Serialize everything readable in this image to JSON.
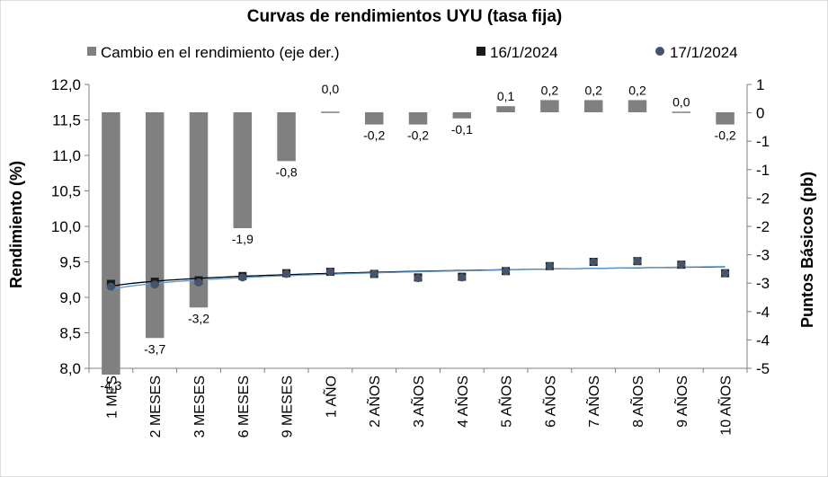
{
  "chart_data": {
    "type": "bar",
    "title": "Curvas de rendimientos UYU (tasa fija)",
    "categories": [
      "1 MES",
      "2 MESES",
      "3 MESES",
      "6 MESES",
      "9 MESES",
      "1 AÑO",
      "2 AÑOS",
      "3 AÑOS",
      "4 AÑOS",
      "5 AÑOS",
      "6 AÑOS",
      "7 AÑOS",
      "8 AÑOS",
      "9 AÑOS",
      "10 AÑOS"
    ],
    "ylabel": "Rendimiento (%)",
    "y2label": "Puntos Básicos (pb)",
    "ylim": [
      8.0,
      12.0
    ],
    "y2lim": [
      -5,
      1
    ],
    "yticks": [
      "8,0",
      "8,5",
      "9,0",
      "9,5",
      "10,0",
      "10,5",
      "11,0",
      "11,5",
      "12,0"
    ],
    "y2ticks": [
      "-5",
      "-4",
      "-4",
      "-3",
      "-3",
      "-2",
      "-2",
      "-1",
      "-1",
      "0",
      "1"
    ],
    "grid": false,
    "legend_position": "top",
    "series": [
      {
        "name": "Cambio en el rendimiento (eje der.)",
        "type": "bar",
        "axis": "right",
        "color": "#808080",
        "values": [
          -4.3,
          -3.7,
          -3.2,
          -1.9,
          -0.8,
          0.0,
          -0.2,
          -0.2,
          -0.1,
          0.1,
          0.2,
          0.2,
          0.2,
          0.0,
          -0.2
        ],
        "labels": [
          "-4,3",
          "-3,7",
          "-3,2",
          "-1,9",
          "-0,8",
          "0,0",
          "-0,2",
          "-0,2",
          "-0,1",
          "0,1",
          "0,2",
          "0,2",
          "0,2",
          "0,0",
          "-0,2"
        ]
      },
      {
        "name": "16/1/2024",
        "type": "scatter",
        "marker": "square",
        "axis": "left",
        "color": "#1a1a1a",
        "trendline_color": "#000000",
        "values": [
          9.19,
          9.22,
          9.24,
          9.3,
          9.34,
          9.36,
          9.33,
          9.28,
          9.29,
          9.37,
          9.44,
          9.5,
          9.51,
          9.46,
          9.34
        ]
      },
      {
        "name": "17/1/2024",
        "type": "scatter",
        "marker": "circle",
        "axis": "left",
        "color": "#44546a",
        "trendline_color": "#5b9bd5",
        "values": [
          9.15,
          9.18,
          9.21,
          9.28,
          9.33,
          9.36,
          9.33,
          9.27,
          9.28,
          9.37,
          9.44,
          9.5,
          9.51,
          9.46,
          9.34
        ]
      }
    ]
  }
}
